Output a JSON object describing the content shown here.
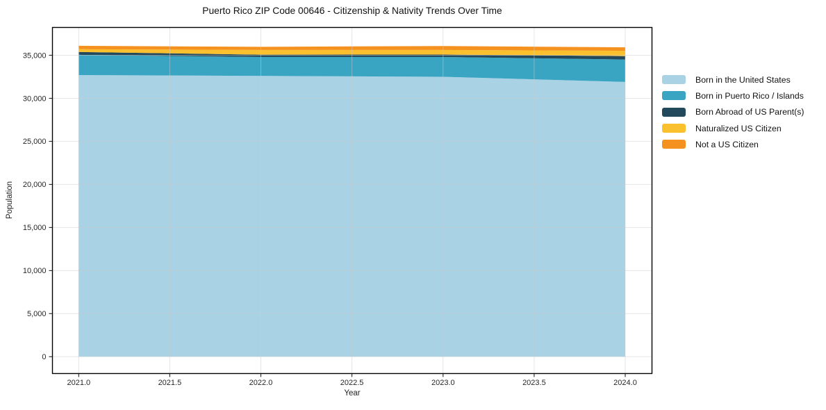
{
  "chart_data": {
    "type": "area",
    "stacked": true,
    "title": "Puerto Rico ZIP Code 00646 - Citizenship & Nativity Trends Over Time",
    "xlabel": "Year",
    "ylabel": "Population",
    "x": [
      2021,
      2022,
      2023,
      2024
    ],
    "series": [
      {
        "name": "Born in the United States",
        "color": "#a9d2e4",
        "values": [
          32700,
          32600,
          32500,
          31900
        ]
      },
      {
        "name": "Born in Puerto Rico / Islands",
        "color": "#3aa5c2",
        "values": [
          2350,
          2200,
          2300,
          2600
        ]
      },
      {
        "name": "Born Abroad of US Parent(s)",
        "color": "#234a5c",
        "values": [
          330,
          270,
          280,
          400
        ]
      },
      {
        "name": "Naturalized US Citizen",
        "color": "#fbc02d",
        "values": [
          320,
          540,
          530,
          620
        ]
      },
      {
        "name": "Not a US Citizen",
        "color": "#f5911e",
        "values": [
          400,
          370,
          460,
          400
        ]
      }
    ],
    "x_ticks": [
      2021.0,
      2021.5,
      2022.0,
      2022.5,
      2023.0,
      2023.5,
      2024.0
    ],
    "y_ticks": [
      0,
      5000,
      10000,
      15000,
      20000,
      25000,
      30000,
      35000
    ],
    "ylim": [
      0,
      36500
    ],
    "grid": true,
    "legend_position": "right",
    "colors": {
      "grid": "#cccccc",
      "spine": "#000000",
      "tick_text": "#262626"
    }
  }
}
